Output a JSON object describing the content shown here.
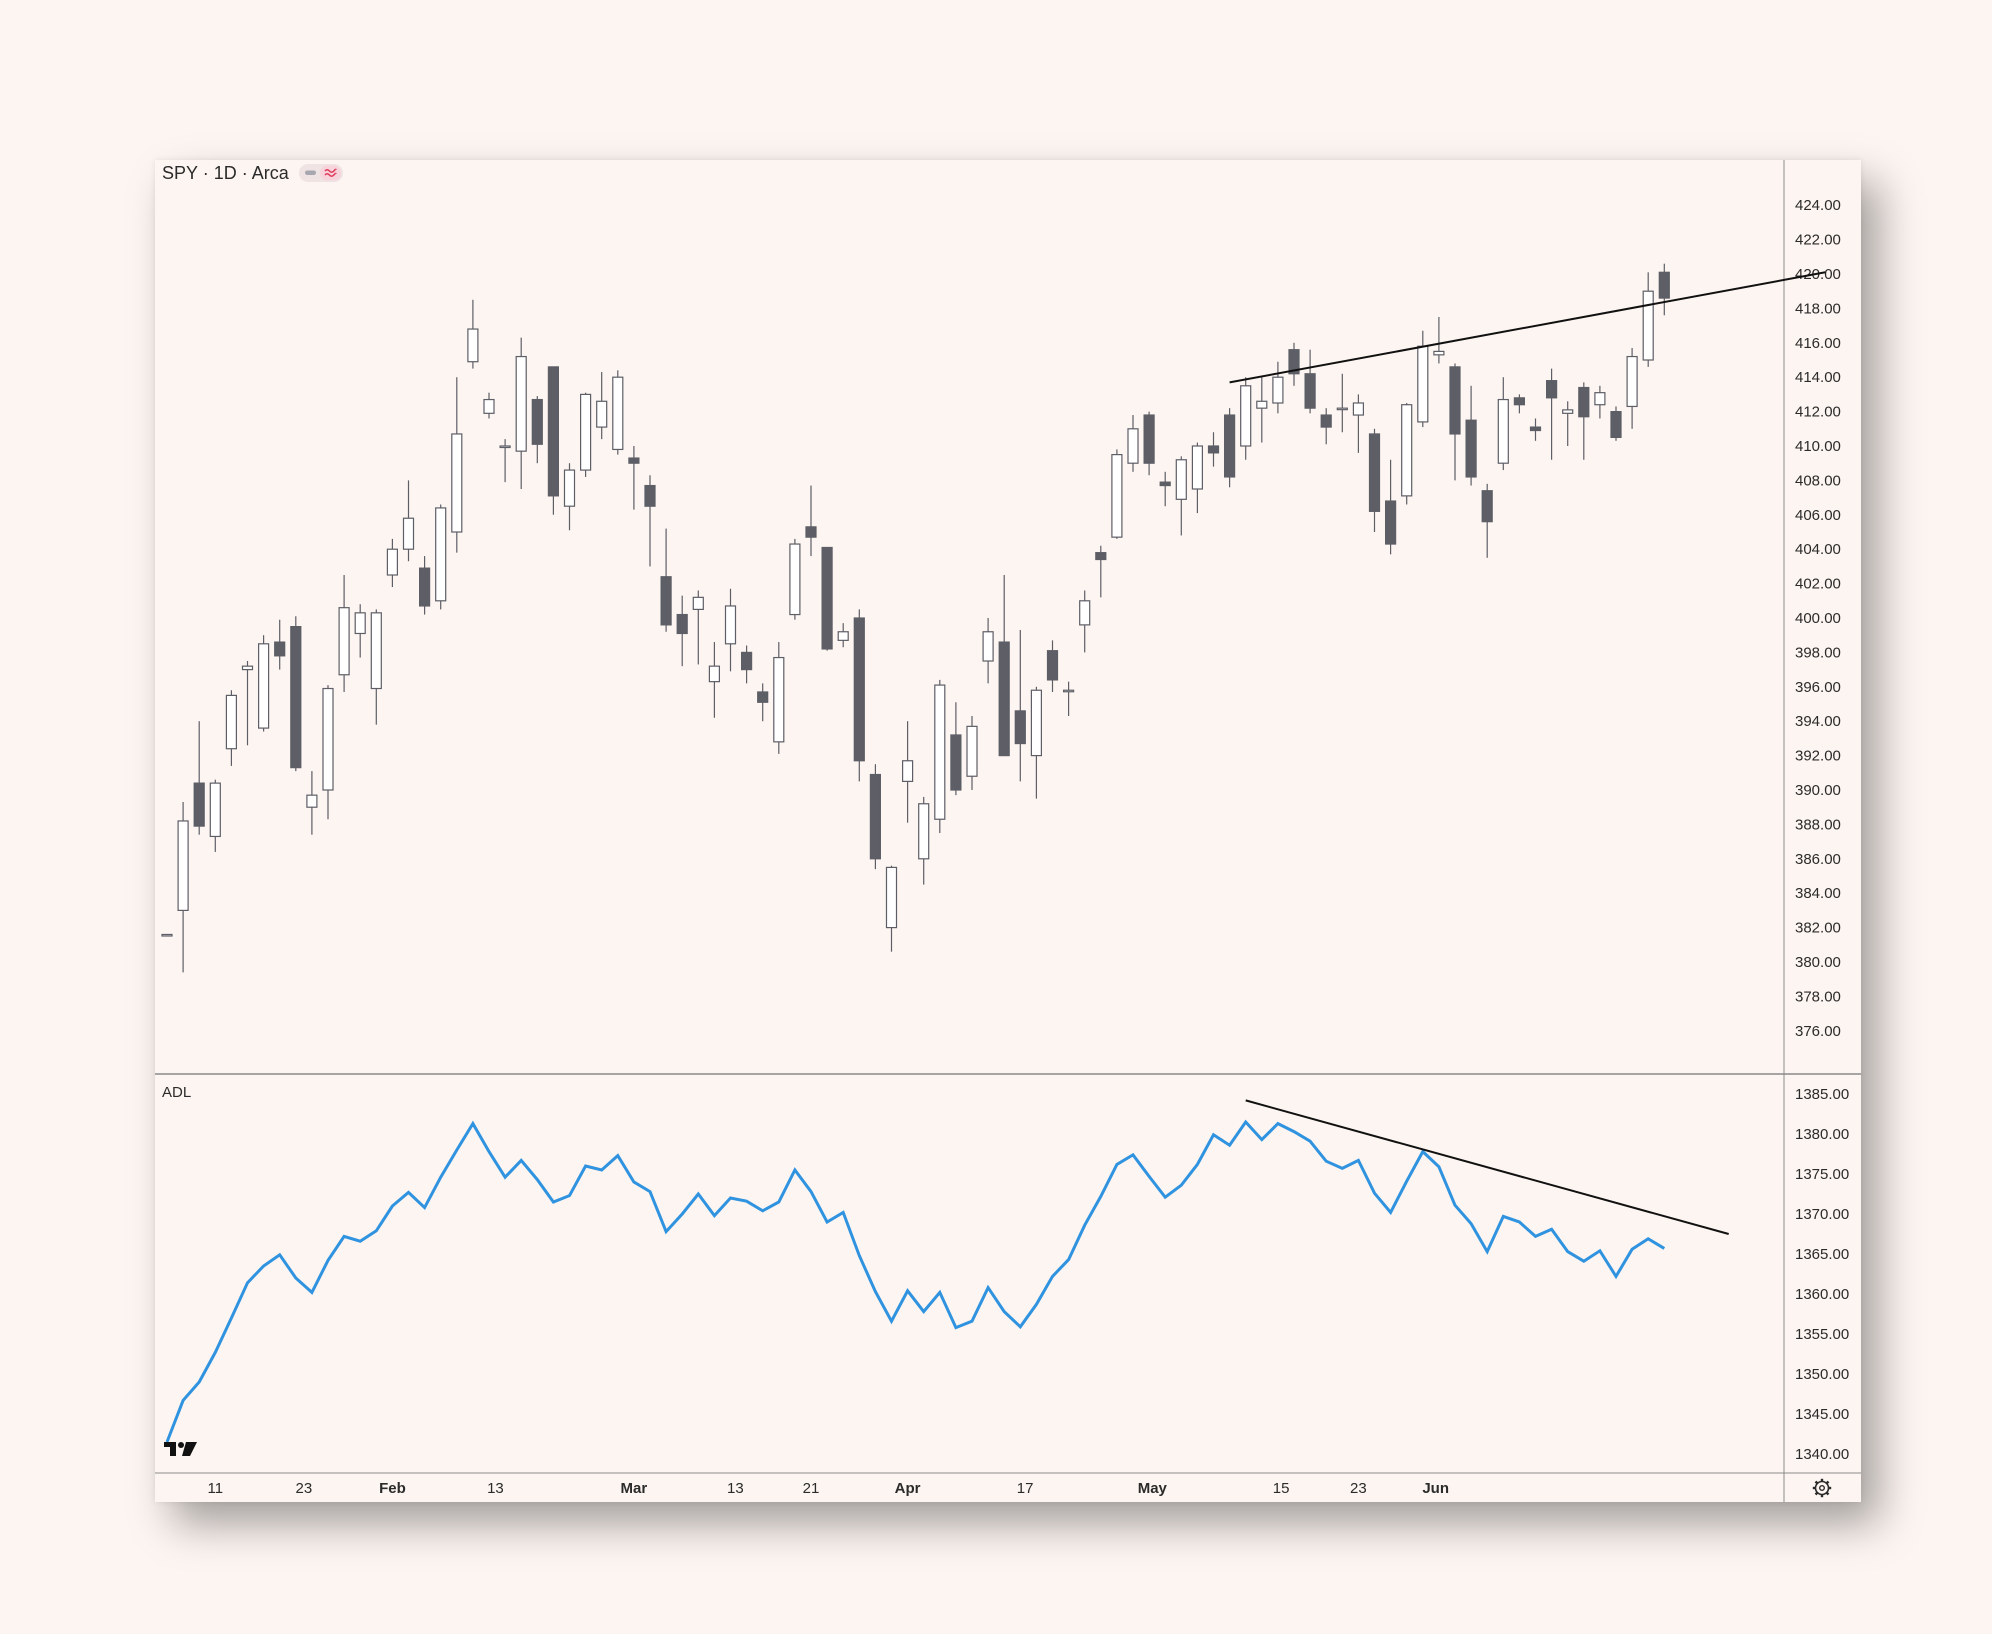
{
  "colors": {
    "background": "#fdf5f1",
    "candle_up_fill": "#ffffff",
    "candle_down_fill": "#5d5e66",
    "candle_stroke": "#5d5e66",
    "adl_line": "#2f93e0",
    "trendline": "#111111",
    "separator": "#8a8a8a"
  },
  "header": {
    "symbol": "SPY · 1D · Arca",
    "badge_left_icon": "minus-icon",
    "badge_right_icon": "wave-icon"
  },
  "brand_logo_icon": "tradingview-logo-icon",
  "settings_icon": "gear-icon",
  "chart_data": [
    {
      "type": "candlestick",
      "title": "SPY · 1D · Arca",
      "y_axis_ticks": [
        "424.00",
        "422.00",
        "420.00",
        "418.00",
        "416.00",
        "414.00",
        "412.00",
        "410.00",
        "408.00",
        "406.00",
        "404.00",
        "402.00",
        "400.00",
        "398.00",
        "396.00",
        "394.00",
        "392.00",
        "390.00",
        "388.00",
        "386.00",
        "384.00",
        "382.00",
        "380.00",
        "378.00",
        "376.00"
      ],
      "ylim": [
        375,
        425
      ],
      "x_axis_labels": [
        {
          "label": "11",
          "major": false
        },
        {
          "label": "23",
          "major": false
        },
        {
          "label": "Feb",
          "major": true
        },
        {
          "label": "13",
          "major": false
        },
        {
          "label": "Mar",
          "major": true
        },
        {
          "label": "13",
          "major": false
        },
        {
          "label": "21",
          "major": false
        },
        {
          "label": "Apr",
          "major": true
        },
        {
          "label": "17",
          "major": false
        },
        {
          "label": "May",
          "major": true
        },
        {
          "label": "15",
          "major": false
        },
        {
          "label": "23",
          "major": false
        },
        {
          "label": "Jun",
          "major": true
        }
      ],
      "candles": [
        [
          381.6,
          381.6,
          379.4,
          379.4
        ],
        [
          383.0,
          388.2,
          389.3,
          379.4
        ],
        [
          390.4,
          387.9,
          394.0,
          387.4
        ],
        [
          387.3,
          390.4,
          390.6,
          386.4
        ],
        [
          392.4,
          395.5,
          395.8,
          391.4
        ],
        [
          397.0,
          397.2,
          397.5,
          392.6
        ],
        [
          393.6,
          398.5,
          399.0,
          393.4
        ],
        [
          398.6,
          397.8,
          399.9,
          397.0
        ],
        [
          399.5,
          391.3,
          400.1,
          391.1
        ],
        [
          389.0,
          389.7,
          391.1,
          387.4
        ],
        [
          390.0,
          395.9,
          396.1,
          388.3
        ],
        [
          396.7,
          400.6,
          402.5,
          395.7
        ],
        [
          399.1,
          400.3,
          400.8,
          397.7
        ],
        [
          395.9,
          400.3,
          400.5,
          393.8
        ],
        [
          402.5,
          404.0,
          404.6,
          401.8
        ],
        [
          404.0,
          405.8,
          408.0,
          403.3
        ],
        [
          402.9,
          400.7,
          403.6,
          400.2
        ],
        [
          401.0,
          406.4,
          406.6,
          400.5
        ],
        [
          405.0,
          410.7,
          414.0,
          403.8
        ],
        [
          414.9,
          416.8,
          418.5,
          414.5
        ],
        [
          411.9,
          412.7,
          413.1,
          411.6
        ],
        [
          410.0,
          410.0,
          410.4,
          407.9
        ],
        [
          409.7,
          415.2,
          416.3,
          407.5
        ],
        [
          412.7,
          410.1,
          412.9,
          409.0
        ],
        [
          414.6,
          407.1,
          414.6,
          406.0
        ],
        [
          406.5,
          408.6,
          409.0,
          405.1
        ],
        [
          408.6,
          413.0,
          413.1,
          408.2
        ],
        [
          411.1,
          412.6,
          414.3,
          410.4
        ],
        [
          409.8,
          414.0,
          414.4,
          409.5
        ],
        [
          409.3,
          409.0,
          410.0,
          406.3
        ],
        [
          407.7,
          406.5,
          408.3,
          403.0
        ],
        [
          402.4,
          399.6,
          405.2,
          399.2
        ],
        [
          400.2,
          399.1,
          401.3,
          397.2
        ],
        [
          400.5,
          401.2,
          401.6,
          397.3
        ],
        [
          396.3,
          397.2,
          398.6,
          394.2
        ],
        [
          398.5,
          400.7,
          401.7,
          396.9
        ],
        [
          398.0,
          397.0,
          398.4,
          396.2
        ],
        [
          395.7,
          395.1,
          396.2,
          394.0
        ],
        [
          392.8,
          397.7,
          398.6,
          392.1
        ],
        [
          400.2,
          404.3,
          404.6,
          399.9
        ],
        [
          405.3,
          404.7,
          407.7,
          403.6
        ],
        [
          404.1,
          398.2,
          404.1,
          398.1
        ],
        [
          398.7,
          399.2,
          399.7,
          398.3
        ],
        [
          400.0,
          391.7,
          400.5,
          390.5
        ],
        [
          390.9,
          386.0,
          391.5,
          385.4
        ],
        [
          382.0,
          385.5,
          385.6,
          380.6
        ],
        [
          390.5,
          391.7,
          394.0,
          388.1
        ],
        [
          386.0,
          389.2,
          389.6,
          384.5
        ],
        [
          388.3,
          396.1,
          396.4,
          387.5
        ],
        [
          393.2,
          390.0,
          395.1,
          389.7
        ],
        [
          390.8,
          393.7,
          394.3,
          390.0
        ],
        [
          397.5,
          399.2,
          400.0,
          396.2
        ],
        [
          398.6,
          392.0,
          402.5,
          392.0
        ],
        [
          394.6,
          392.7,
          399.3,
          390.5
        ],
        [
          392.0,
          395.8,
          396.0,
          389.5
        ],
        [
          398.1,
          396.4,
          398.7,
          395.7
        ],
        [
          395.8,
          395.8,
          396.3,
          394.3
        ],
        [
          399.6,
          401.0,
          401.6,
          398.0
        ],
        [
          403.8,
          403.4,
          404.2,
          401.2
        ],
        [
          404.7,
          409.5,
          409.8,
          404.6
        ],
        [
          409.0,
          411.0,
          411.8,
          408.5
        ],
        [
          411.8,
          409.0,
          412.0,
          408.3
        ],
        [
          407.9,
          407.7,
          408.5,
          406.5
        ],
        [
          406.9,
          409.2,
          409.4,
          404.8
        ],
        [
          407.5,
          410.0,
          410.2,
          406.1
        ],
        [
          410.0,
          409.6,
          410.8,
          408.8
        ],
        [
          411.8,
          408.2,
          412.2,
          407.6
        ],
        [
          410.0,
          413.5,
          414.0,
          409.2
        ],
        [
          412.2,
          412.6,
          414.0,
          410.2
        ],
        [
          412.5,
          414.0,
          414.9,
          411.9
        ],
        [
          415.6,
          414.2,
          416.0,
          413.5
        ],
        [
          414.2,
          412.2,
          415.6,
          411.9
        ],
        [
          411.8,
          411.1,
          412.2,
          410.1
        ],
        [
          412.2,
          412.2,
          414.2,
          410.8
        ],
        [
          411.8,
          412.5,
          413.0,
          409.6
        ],
        [
          410.7,
          406.2,
          411.0,
          405.0
        ],
        [
          406.8,
          404.3,
          409.2,
          403.7
        ],
        [
          407.1,
          412.4,
          412.5,
          406.6
        ],
        [
          411.4,
          415.8,
          416.7,
          411.1
        ],
        [
          415.3,
          415.5,
          417.5,
          414.8
        ],
        [
          414.6,
          410.7,
          414.8,
          408.0
        ],
        [
          411.5,
          408.2,
          413.5,
          407.7
        ],
        [
          407.4,
          405.6,
          407.8,
          403.5
        ],
        [
          409.0,
          412.7,
          414.0,
          408.6
        ],
        [
          412.8,
          412.4,
          413.0,
          411.9
        ],
        [
          411.1,
          410.9,
          411.6,
          410.3
        ],
        [
          413.8,
          412.8,
          414.5,
          409.2
        ],
        [
          411.9,
          412.1,
          412.6,
          410.0
        ],
        [
          413.4,
          411.7,
          413.7,
          409.2
        ],
        [
          412.4,
          413.1,
          413.5,
          411.6
        ],
        [
          412.0,
          410.5,
          412.3,
          410.3
        ],
        [
          412.3,
          415.2,
          415.7,
          411.0
        ],
        [
          415.0,
          419.0,
          420.1,
          414.6
        ],
        [
          420.1,
          418.6,
          420.6,
          417.6
        ]
      ],
      "trendline": {
        "start": [
          66,
          413.7
        ],
        "end": [
          103,
          420.1
        ]
      }
    },
    {
      "type": "line",
      "title": "ADL",
      "y_axis_ticks": [
        "1385.00",
        "1380.00",
        "1375.00",
        "1370.00",
        "1365.00",
        "1360.00",
        "1355.00",
        "1350.00",
        "1345.00",
        "1340.00"
      ],
      "ylim": [
        1338,
        1386
      ],
      "values": [
        1341.5,
        1346.7,
        1349.0,
        1352.7,
        1357.0,
        1361.4,
        1363.5,
        1364.9,
        1362.0,
        1360.2,
        1364.2,
        1367.2,
        1366.6,
        1367.9,
        1371.0,
        1372.7,
        1370.8,
        1374.6,
        1378.0,
        1381.3,
        1377.8,
        1374.6,
        1376.7,
        1374.3,
        1371.5,
        1372.3,
        1376.0,
        1375.5,
        1377.3,
        1374.0,
        1372.8,
        1367.8,
        1370.0,
        1372.5,
        1369.8,
        1372.0,
        1371.6,
        1370.4,
        1371.5,
        1375.5,
        1372.8,
        1369.0,
        1370.2,
        1364.8,
        1360.3,
        1356.6,
        1360.4,
        1357.8,
        1360.2,
        1355.8,
        1356.6,
        1360.8,
        1357.8,
        1355.9,
        1358.7,
        1362.2,
        1364.3,
        1368.6,
        1372.2,
        1376.2,
        1377.4,
        1374.7,
        1372.1,
        1373.6,
        1376.2,
        1379.9,
        1378.6,
        1381.5,
        1379.3,
        1381.3,
        1380.3,
        1379.1,
        1376.6,
        1375.7,
        1376.7,
        1372.6,
        1370.2,
        1374.1,
        1377.8,
        1375.9,
        1371.1,
        1368.8,
        1365.3,
        1369.7,
        1369.0,
        1367.2,
        1368.1,
        1365.3,
        1364.1,
        1365.4,
        1362.2,
        1365.6,
        1366.9,
        1365.7
      ],
      "trendline": {
        "start": [
          67,
          1384.2
        ],
        "end": [
          97,
          1367.5
        ]
      }
    }
  ]
}
